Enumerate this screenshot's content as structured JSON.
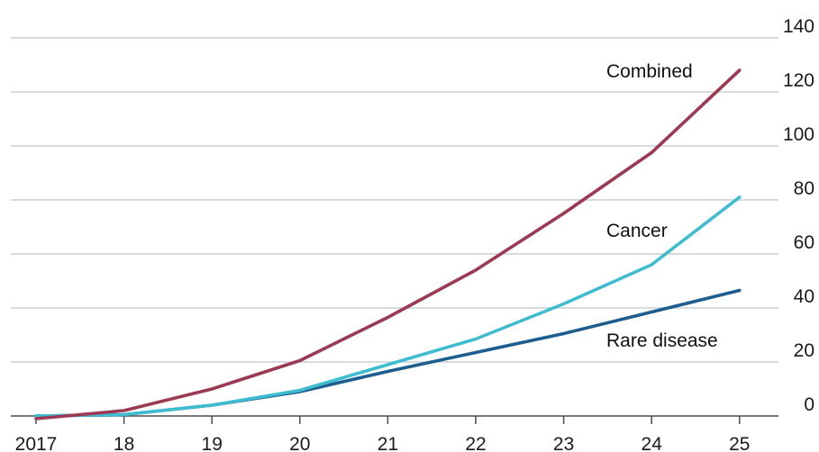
{
  "chart_data": {
    "type": "line",
    "title": "",
    "xlabel": "",
    "ylabel": "",
    "x": [
      "2017",
      "18",
      "19",
      "20",
      "21",
      "22",
      "23",
      "24",
      "25"
    ],
    "ylim": [
      0,
      140
    ],
    "yticks": [
      0,
      20,
      40,
      60,
      80,
      100,
      120,
      140
    ],
    "grid": true,
    "y_axis_side": "right",
    "series": [
      {
        "name": "Combined",
        "color": "#9b3a52",
        "values": [
          -1,
          2,
          10,
          20.5,
          36.5,
          54,
          75,
          97.5,
          128
        ]
      },
      {
        "name": "Cancer",
        "color": "#3fbcd0",
        "values": [
          0,
          0.5,
          4,
          9.5,
          19,
          28.5,
          41.5,
          56,
          81
        ]
      },
      {
        "name": "Rare disease",
        "color": "#1e5d8f",
        "values": [
          0,
          0.5,
          4,
          9,
          16.5,
          23.5,
          30.5,
          38.5,
          46.5
        ]
      }
    ]
  }
}
